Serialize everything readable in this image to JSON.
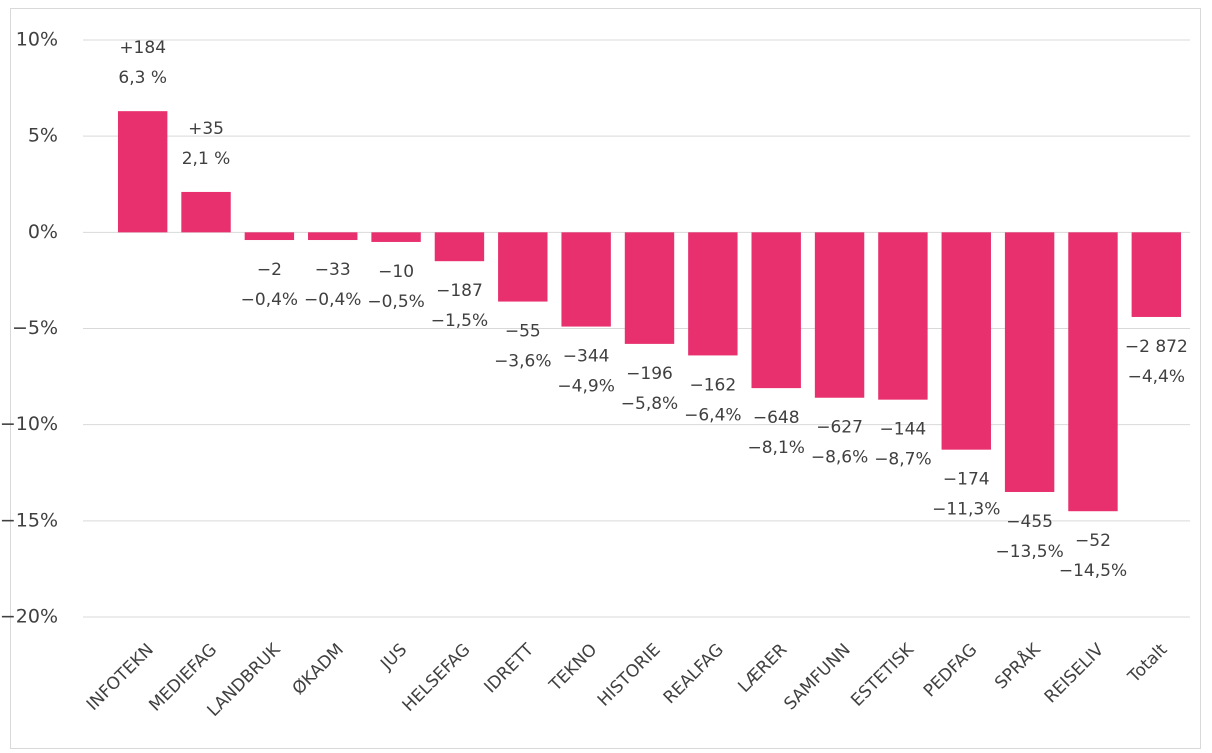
{
  "chart_data": {
    "type": "bar",
    "categories": [
      "INFOTEKN",
      "MEDIEFAG",
      "LANDBRUK",
      "ØKADM",
      "JUS",
      "HELSEFAG",
      "IDRETT",
      "TEKNO",
      "HISTORIE",
      "REALFAG",
      "LÆRER",
      "SAMFUNN",
      "ESTETISK",
      "PEDFAG",
      "SPRÅK",
      "REISELIV",
      "Totalt"
    ],
    "values": [
      6.3,
      2.1,
      -0.4,
      -0.4,
      -0.5,
      -1.5,
      -3.6,
      -4.9,
      -5.8,
      -6.4,
      -8.1,
      -8.6,
      -8.7,
      -11.3,
      -13.5,
      -14.5,
      -4.4
    ],
    "value_labels": [
      "6,3 %",
      "2,1 %",
      "−0,4%",
      "−0,4%",
      "−0,5%",
      "−1,5%",
      "−3,6%",
      "−4,9%",
      "−5,8%",
      "−6,4%",
      "−8,1%",
      "−8,6%",
      "−8,7%",
      "−11,3%",
      "−13,5%",
      "−14,5%",
      "−4,4%"
    ],
    "change_labels": [
      "+184",
      "+35",
      "−2",
      "−33",
      "−10",
      "−187",
      "−55",
      "−344",
      "−196",
      "−162",
      "−648",
      "−627",
      "−144",
      "−174",
      "−455",
      "−52",
      "−2 872"
    ],
    "color": "#e8306f",
    "ylim": [
      -20,
      10
    ],
    "yticks": [
      {
        "value": 10,
        "label": "10%"
      },
      {
        "value": 5,
        "label": "5%"
      },
      {
        "value": 0,
        "label": "0%"
      },
      {
        "value": -5,
        "label": "−5%"
      },
      {
        "value": -10,
        "label": "−10%"
      },
      {
        "value": -15,
        "label": "−15%"
      },
      {
        "value": -20,
        "label": "−20%"
      }
    ],
    "grid": true
  }
}
